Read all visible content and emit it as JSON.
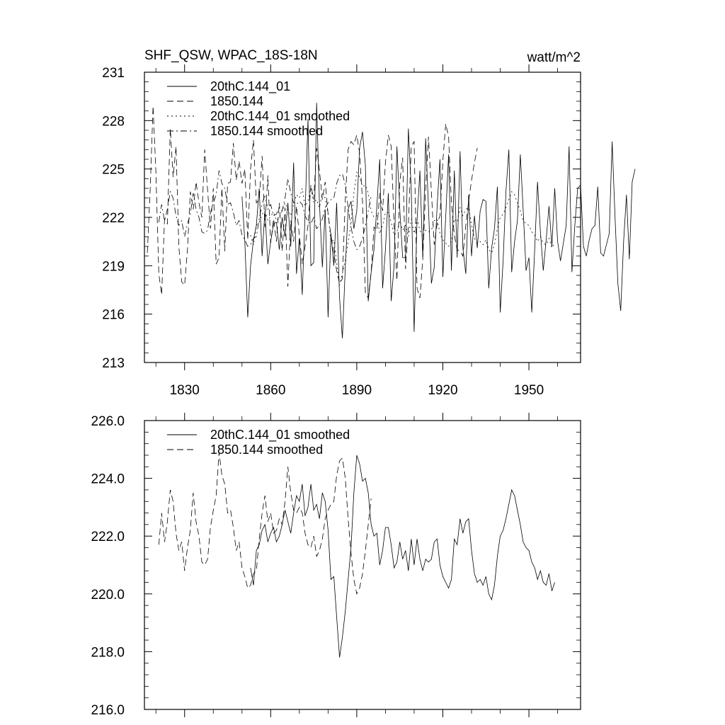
{
  "chart_data": [
    {
      "type": "line",
      "title": "SHF_QSW, WPAC_18S-18N",
      "units": "watt/m^2",
      "xlim": [
        1816,
        1968
      ],
      "ylim": [
        213,
        231
      ],
      "xticks": [
        1830,
        1860,
        1890,
        1920,
        1950
      ],
      "yticks": [
        213,
        216,
        219,
        222,
        225,
        228,
        231
      ],
      "ytick_labels": [
        "213",
        "216",
        "219",
        "222",
        "225",
        "228",
        "231"
      ],
      "xtick_labels": [
        "1830",
        "1860",
        "1890",
        "1920",
        "1950"
      ],
      "legend_position": "top-left",
      "series": [
        {
          "name": "20thC.144_01",
          "style": "solid",
          "x_start": 1850,
          "values": [
            223.3,
            220.5,
            215.8,
            219.0,
            220.6,
            221.5,
            223.8,
            219.6,
            222.4,
            219.1,
            220.5,
            221.6,
            221.7,
            220.0,
            222.0,
            220.8,
            222.9,
            220.2,
            225.4,
            218.5,
            220.7,
            217.2,
            222.2,
            228.1,
            219.0,
            219.2,
            229.1,
            222.9,
            218.9,
            222.5,
            215.8,
            221.0,
            219.0,
            222.9,
            217.0,
            214.5,
            218.9,
            222.5,
            223.0,
            221.3,
            222.4,
            226.3,
            227.3,
            225.2,
            216.8,
            218.6,
            220.0,
            222.7,
            225.6,
            217.6,
            220.0,
            223.5,
            216.8,
            219.0,
            226.4,
            222.5,
            219.5,
            219.5,
            227.5,
            223.7,
            214.9,
            221.8,
            224.9,
            219.5,
            226.9,
            222.6,
            217.9,
            218.9,
            222.7,
            225.6,
            218.3,
            222.0,
            225.9,
            218.7,
            224.9,
            219.5,
            226.1,
            220.1,
            218.5,
            223.4,
            219.6,
            222.1,
            220.1,
            222.4,
            223.1,
            223.0,
            217.6,
            220.1,
            221.3,
            223.9,
            216.1,
            219.3,
            223.6,
            226.2,
            218.6,
            220.5,
            221.8,
            225.9,
            222.5,
            218.7,
            219.5,
            216.1,
            220.0,
            224.2,
            221.1,
            218.7,
            220.6,
            222.7,
            220.2,
            223.8,
            220.5,
            219.3,
            220.4,
            221.5,
            226.4,
            218.6,
            221.5,
            223.8,
            224.0,
            220.2,
            219.6,
            220.6,
            221.3,
            221.5,
            223.9,
            219.8,
            219.6,
            220.3,
            221.0,
            226.7,
            222.1,
            217.9,
            216.2,
            220.5,
            223.4,
            219.4,
            224.2,
            225.0
          ]
        },
        {
          "name": "1850.144",
          "style": "dash",
          "x_start": 1817,
          "values": [
            219.8,
            223.7,
            228.9,
            224.8,
            218.5,
            217.2,
            221.9,
            221.6,
            227.5,
            224.5,
            226.4,
            220.2,
            218.0,
            217.8,
            220.0,
            223.6,
            222.5,
            224.2,
            222.9,
            222.0,
            226.2,
            223.7,
            221.3,
            223.8,
            219.1,
            219.5,
            223.8,
            219.9,
            224.1,
            224.2,
            226.6,
            224.3,
            225.5,
            224.1,
            225.0,
            220.6,
            225.0,
            226.8,
            222.9,
            223.1,
            225.8,
            221.4,
            224.6,
            220.4,
            221.9,
            220.5,
            222.9,
            219.9,
            222.6,
            217.7,
            221.8,
            220.5,
            222.7,
            220.9,
            219.1,
            220.2,
            221.5,
            224.0,
            223.1,
            226.3,
            224.9,
            223.1,
            224.2,
            222.2,
            220.9,
            219.8,
            218.7,
            217.9,
            218.2,
            223.1,
            226.2,
            226.7,
            226.5,
            227.1,
            226.0,
            223.0,
            217.3,
            217.0,
            218.6,
            221.4,
            221.2,
            223.5,
            222.4,
            225.4,
            227.1,
            226.4,
            221.6,
            218.1,
            224.2,
            225.7,
            218.8,
            221.5,
            226.4,
            226.7,
            217.6,
            217.0,
            219.4,
            223.8,
            227.0,
            223.6,
            220.3,
            221.6,
            222.1,
            225.5,
            227.8,
            227.0,
            222.9,
            220.9,
            220.0,
            219.9,
            219.6,
            221.5,
            223.0,
            224.3,
            225.4,
            226.3
          ]
        },
        {
          "name": "20thC.144_01 smoothed",
          "style": "dot",
          "x_start": 1853,
          "values": [
            220.9,
            220.3,
            221.5,
            221.7,
            222.2,
            222.4,
            221.8,
            222.1,
            222.3,
            221.8,
            222.0,
            222.4,
            222.9,
            222.5,
            222.1,
            222.8,
            223.4,
            223.2,
            223.8,
            222.7,
            223.0,
            223.8,
            222.9,
            223.1,
            222.6,
            223.5,
            223.2,
            222.2,
            220.5,
            220.6,
            219.2,
            217.8,
            218.5,
            219.4,
            220.5,
            221.6,
            223.5,
            224.8,
            224.5,
            223.9,
            224.0,
            223.5,
            222.4,
            222.0,
            222.1,
            221.0,
            221.5,
            222.3,
            222.3,
            221.7,
            220.9,
            221.1,
            221.8,
            221.2,
            221.5,
            220.8,
            221.9,
            221.0,
            221.9,
            221.2,
            220.8,
            221.2,
            221.1,
            221.2,
            221.8,
            221.9,
            221.0,
            220.6,
            220.4,
            220.2,
            220.5,
            221.9,
            221.7,
            222.6,
            222.1,
            222.5,
            222.6,
            221.5,
            220.7,
            220.4,
            220.5,
            220.3,
            220.6,
            220.0,
            219.8,
            220.3,
            221.3,
            222.0,
            222.2,
            222.6,
            223.1,
            223.6,
            223.4,
            222.9,
            222.4,
            221.8,
            221.6,
            221.5,
            221.1,
            220.9,
            220.5,
            220.8,
            220.4,
            220.3,
            220.7,
            220.1,
            220.4
          ]
        },
        {
          "name": "1850.144 smoothed",
          "style": "dashdot",
          "x_start": 1821,
          "values": [
            221.7,
            222.8,
            221.8,
            222.5,
            223.6,
            223.2,
            222.1,
            221.5,
            221.8,
            220.8,
            221.6,
            222.2,
            223.5,
            222.5,
            222.0,
            221.1,
            221.0,
            221.2,
            222.3,
            222.9,
            223.4,
            224.9,
            224.1,
            223.8,
            222.8,
            222.9,
            222.3,
            221.5,
            221.8,
            220.9,
            220.6,
            220.2,
            220.3,
            220.7,
            220.8,
            221.9,
            222.8,
            223.4,
            222.5,
            222.8,
            222.1,
            222.2,
            222.6,
            222.4,
            223.2,
            224.4,
            223.5,
            222.9,
            222.8,
            223.0,
            222.8,
            222.1,
            221.7,
            221.6,
            222.0,
            221.3,
            221.5,
            221.9,
            222.6,
            222.9,
            223.1,
            223.2,
            224.1,
            224.6,
            224.7,
            224.0,
            222.6,
            221.4,
            220.5,
            220.0,
            220.2,
            220.7,
            221.5,
            222.4,
            223.3
          ]
        }
      ]
    },
    {
      "type": "line",
      "title": "",
      "xlim": [
        1816,
        1968
      ],
      "ylim": [
        216.0,
        226.0
      ],
      "xticks": [
        1830,
        1860,
        1890,
        1920,
        1950
      ],
      "yticks": [
        216.0,
        218.0,
        220.0,
        222.0,
        224.0,
        226.0
      ],
      "ytick_labels": [
        "216.0",
        "218.0",
        "220.0",
        "222.0",
        "224.0",
        "226.0"
      ],
      "legend_position": "top-left",
      "series": [
        {
          "name": "20thC.144_01 smoothed",
          "style": "solid",
          "x_start": 1853,
          "values": [
            220.9,
            220.3,
            221.5,
            221.7,
            222.2,
            222.4,
            221.8,
            222.1,
            222.3,
            221.8,
            222.0,
            222.4,
            222.9,
            222.5,
            222.1,
            222.8,
            223.4,
            223.2,
            223.8,
            222.7,
            223.0,
            223.8,
            222.9,
            223.1,
            222.6,
            223.5,
            223.2,
            222.2,
            220.5,
            220.6,
            219.2,
            217.8,
            218.5,
            219.4,
            220.5,
            221.6,
            223.5,
            224.8,
            224.5,
            223.9,
            224.0,
            223.5,
            222.4,
            222.0,
            222.1,
            221.0,
            221.5,
            222.3,
            222.3,
            221.7,
            220.9,
            221.1,
            221.8,
            221.2,
            221.5,
            220.8,
            221.9,
            221.0,
            221.9,
            221.2,
            220.8,
            221.2,
            221.1,
            221.2,
            221.8,
            221.9,
            221.0,
            220.6,
            220.4,
            220.2,
            220.5,
            221.9,
            221.7,
            222.6,
            222.1,
            222.5,
            222.6,
            221.5,
            220.7,
            220.4,
            220.5,
            220.3,
            220.6,
            220.0,
            219.8,
            220.3,
            221.3,
            222.0,
            222.2,
            222.6,
            223.1,
            223.6,
            223.4,
            222.9,
            222.4,
            221.8,
            221.6,
            221.5,
            221.1,
            220.9,
            220.5,
            220.8,
            220.4,
            220.3,
            220.7,
            220.1,
            220.4
          ]
        },
        {
          "name": "1850.144 smoothed",
          "style": "dash",
          "x_start": 1821,
          "values": [
            221.7,
            222.8,
            221.8,
            222.5,
            223.6,
            223.2,
            222.1,
            221.5,
            221.8,
            220.8,
            221.6,
            222.2,
            223.5,
            222.5,
            222.0,
            221.1,
            221.0,
            221.2,
            222.3,
            222.9,
            223.4,
            224.9,
            224.1,
            223.8,
            222.8,
            222.9,
            222.3,
            221.5,
            221.8,
            220.9,
            220.6,
            220.2,
            220.3,
            220.7,
            220.8,
            221.9,
            222.8,
            223.4,
            222.5,
            222.8,
            222.1,
            222.2,
            222.6,
            222.4,
            223.2,
            224.4,
            223.5,
            222.9,
            222.8,
            223.0,
            222.8,
            222.1,
            221.7,
            221.6,
            222.0,
            221.3,
            221.5,
            221.9,
            222.6,
            222.9,
            223.1,
            223.2,
            224.1,
            224.6,
            224.7,
            224.0,
            222.6,
            221.4,
            220.5,
            220.0,
            220.2,
            220.7,
            221.5,
            222.4,
            223.3
          ]
        }
      ]
    }
  ]
}
